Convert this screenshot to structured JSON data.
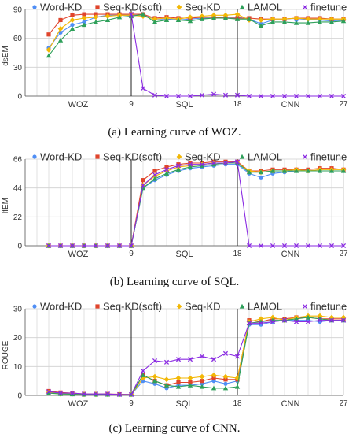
{
  "legend_labels": [
    "Word-KD",
    "Seq-KD(soft)",
    "Seq-KD",
    "LAMOL",
    "finetune"
  ],
  "series_colors": [
    "#4f8ef5",
    "#e0442b",
    "#f2b705",
    "#2ea05a",
    "#8a2be2"
  ],
  "series_markers": [
    "circle",
    "square",
    "diamond",
    "triangle",
    "cross"
  ],
  "chart_data": [
    {
      "type": "line",
      "ylabel": "dsEM",
      "ylim": [
        0,
        90
      ],
      "yticks": [
        0,
        30,
        60,
        90
      ],
      "xlim": [
        0,
        27
      ],
      "xticks": [
        "9",
        "18",
        "27"
      ],
      "regions": [
        "WOZ",
        "SQL",
        "CNN"
      ],
      "boundaries": [
        9,
        18
      ],
      "grid": true,
      "legend_position": "top",
      "x": [
        2,
        3,
        4,
        5,
        6,
        7,
        8,
        9,
        10,
        11,
        12,
        13,
        14,
        15,
        16,
        17,
        18,
        19,
        20,
        21,
        22,
        23,
        24,
        25,
        26,
        27
      ],
      "series": [
        {
          "values": [
            50,
            66,
            74,
            77,
            82,
            84,
            84,
            84,
            84,
            80,
            80,
            79,
            80,
            81,
            81,
            82,
            82,
            80,
            75,
            79,
            79,
            79,
            80,
            79,
            78,
            79
          ]
        },
        {
          "values": [
            64,
            79,
            84,
            85,
            85,
            85,
            85,
            85,
            85,
            81,
            82,
            81,
            81,
            82,
            82,
            81,
            81,
            81,
            80,
            80,
            80,
            81,
            81,
            81,
            80,
            80
          ]
        },
        {
          "values": [
            48,
            70,
            79,
            81,
            82,
            83,
            84,
            84,
            83,
            80,
            81,
            80,
            82,
            83,
            84,
            84,
            85,
            79,
            79,
            80,
            80,
            81,
            80,
            80,
            80,
            80
          ]
        },
        {
          "values": [
            42,
            58,
            70,
            74,
            77,
            79,
            82,
            83,
            85,
            77,
            79,
            79,
            78,
            80,
            81,
            81,
            80,
            80,
            73,
            77,
            77,
            76,
            76,
            77,
            77,
            78
          ]
        },
        {
          "values": [
            null,
            null,
            null,
            null,
            null,
            null,
            null,
            85,
            8,
            1,
            0,
            0,
            0,
            1,
            2,
            1,
            1,
            0,
            0,
            0,
            0,
            0,
            0,
            0,
            0,
            0
          ]
        }
      ],
      "caption": "(a) Learning curve of WOZ."
    },
    {
      "type": "line",
      "ylabel": "lfEM",
      "ylim": [
        0,
        66
      ],
      "yticks": [
        0,
        22,
        44,
        66
      ],
      "xlim": [
        0,
        27
      ],
      "xticks": [
        "9",
        "18",
        "27"
      ],
      "regions": [
        "WOZ",
        "SQL",
        "CNN"
      ],
      "boundaries": [
        9,
        18
      ],
      "grid": true,
      "legend_position": "top",
      "x": [
        2,
        3,
        4,
        5,
        6,
        7,
        8,
        9,
        10,
        11,
        12,
        13,
        14,
        15,
        16,
        17,
        18,
        19,
        20,
        21,
        22,
        23,
        24,
        25,
        26,
        27
      ],
      "series": [
        {
          "values": [
            0,
            0,
            0,
            0,
            0,
            0,
            0,
            0,
            44,
            50,
            54,
            57,
            59,
            60,
            61,
            62,
            62,
            55,
            52,
            55,
            56,
            57,
            57,
            57,
            57,
            57
          ]
        },
        {
          "values": [
            0,
            0,
            0,
            0,
            0,
            0,
            0,
            0,
            50,
            57,
            60,
            62,
            63,
            63,
            64,
            64,
            64,
            57,
            57,
            58,
            58,
            58,
            58,
            59,
            59,
            58
          ]
        },
        {
          "values": [
            0,
            0,
            0,
            0,
            0,
            0,
            0,
            0,
            46,
            53,
            57,
            60,
            61,
            62,
            63,
            63,
            63,
            57,
            56,
            57,
            57,
            58,
            57,
            58,
            58,
            58
          ]
        },
        {
          "values": [
            0,
            0,
            0,
            0,
            0,
            0,
            0,
            0,
            44,
            51,
            55,
            58,
            60,
            61,
            62,
            63,
            63,
            56,
            56,
            57,
            57,
            57,
            57,
            57,
            57,
            57
          ]
        },
        {
          "values": [
            0,
            0,
            0,
            0,
            0,
            0,
            0,
            0,
            46,
            54,
            58,
            61,
            62,
            62,
            63,
            63,
            64,
            0,
            0,
            0,
            0,
            0,
            0,
            0,
            0,
            0
          ]
        }
      ],
      "caption": "(b) Learning curve of SQL."
    },
    {
      "type": "line",
      "ylabel": "ROUGE",
      "ylim": [
        0,
        30
      ],
      "yticks": [
        0,
        10,
        20,
        30
      ],
      "xlim": [
        0,
        27
      ],
      "xticks": [
        "9",
        "18",
        "27"
      ],
      "regions": [
        "WOZ",
        "SQL",
        "CNN"
      ],
      "boundaries": [
        9,
        18
      ],
      "grid": true,
      "legend_position": "top",
      "x": [
        2,
        3,
        4,
        5,
        6,
        7,
        8,
        9,
        10,
        11,
        12,
        13,
        14,
        15,
        16,
        17,
        18,
        19,
        20,
        21,
        22,
        23,
        24,
        25,
        26,
        27
      ],
      "series": [
        {
          "values": [
            1.2,
            0.6,
            0.5,
            0.3,
            0.4,
            0.4,
            0.3,
            0.3,
            5,
            4,
            2.5,
            3.5,
            3.5,
            4,
            5,
            4,
            5,
            24.5,
            24.5,
            25.5,
            26,
            26,
            26,
            25.5,
            26,
            26
          ]
        },
        {
          "values": [
            1.5,
            1,
            0.8,
            0.5,
            0.5,
            0.5,
            0.4,
            0.3,
            7,
            5,
            3.5,
            4.5,
            4.5,
            5,
            6,
            5.5,
            5.5,
            26,
            25.5,
            26.5,
            26.5,
            27,
            27,
            26.5,
            26.5,
            26.5
          ]
        },
        {
          "values": [
            1,
            0.5,
            0.5,
            0.3,
            0.3,
            0.3,
            0.3,
            0.3,
            6,
            6.5,
            5.5,
            6,
            6,
            6.5,
            7,
            6.5,
            6,
            25.5,
            26.5,
            27,
            26,
            27,
            27.5,
            27.5,
            27,
            27
          ]
        },
        {
          "values": [
            0.8,
            0.5,
            0.4,
            0.3,
            0.3,
            0.3,
            0.3,
            0.3,
            7,
            5,
            3.5,
            3,
            3.5,
            3,
            2.5,
            2.5,
            3,
            25,
            25.5,
            26,
            26,
            26.5,
            27,
            26.5,
            26,
            26
          ]
        },
        {
          "values": [
            1.3,
            0.8,
            0.8,
            0.5,
            0.5,
            0.5,
            0.3,
            0.3,
            8.5,
            12,
            11.5,
            12.5,
            12.5,
            13.5,
            12.5,
            14.5,
            13.5,
            25,
            25,
            25.5,
            26,
            25.5,
            25.5,
            26,
            26,
            26
          ]
        }
      ],
      "caption": "(c) Learning curve of CNN."
    }
  ]
}
